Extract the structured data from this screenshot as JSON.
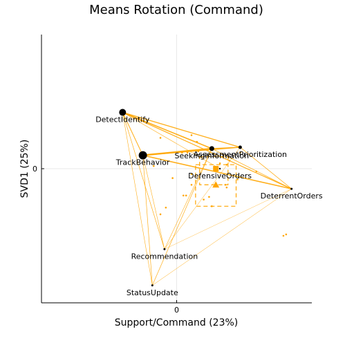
{
  "chart_data": {
    "type": "scatter",
    "title": "Means Rotation (Command)",
    "xlabel": "Support/Command (23%)",
    "ylabel": "SVD1 (25%)",
    "xlim": [
      -1.0,
      1.0
    ],
    "ylim": [
      -1.0,
      1.0
    ],
    "xticks": [
      0
    ],
    "yticks": [
      0
    ],
    "grid": true,
    "legend": "none",
    "colors": {
      "accent": "#FFA500",
      "points": "#000000",
      "grid": "#e8e8e8"
    },
    "points": [
      {
        "label": "DetectIdentify",
        "x": -0.4,
        "y": 0.42,
        "weight": 5
      },
      {
        "label": "TrackBehavior",
        "x": -0.25,
        "y": 0.1,
        "weight": 6
      },
      {
        "label": "SeekingInformation",
        "x": 0.26,
        "y": 0.15,
        "weight": 3.5
      },
      {
        "label": "AssessmentPrioritization",
        "x": 0.47,
        "y": 0.16,
        "weight": 2.5
      },
      {
        "label": "DeterrentOrders",
        "x": 0.85,
        "y": -0.15,
        "weight": 1.5
      },
      {
        "label": "Recommendation",
        "x": -0.09,
        "y": -0.6,
        "weight": 1.5
      },
      {
        "label": "StatusUpdate",
        "x": -0.18,
        "y": -0.87,
        "weight": 1.5
      },
      {
        "label": "DefensiveOrders",
        "x": 0.32,
        "y": 0.0,
        "weight": 1.2
      }
    ],
    "connections": [
      [
        "DetectIdentify",
        "SeekingInformation",
        1.6
      ],
      [
        "DetectIdentify",
        "AssessmentPrioritization",
        1.3
      ],
      [
        "DetectIdentify",
        "DeterrentOrders",
        1.2
      ],
      [
        "DetectIdentify",
        "TrackBehavior",
        1.0
      ],
      [
        "DetectIdentify",
        "Recommendation",
        0.7
      ],
      [
        "DetectIdentify",
        "StatusUpdate",
        0.6
      ],
      [
        "DetectIdentify",
        "DefensiveOrders",
        0.6
      ],
      [
        "TrackBehavior",
        "SeekingInformation",
        2.4
      ],
      [
        "TrackBehavior",
        "AssessmentPrioritization",
        1.4
      ],
      [
        "TrackBehavior",
        "DeterrentOrders",
        1.6
      ],
      [
        "TrackBehavior",
        "StatusUpdate",
        0.7
      ],
      [
        "TrackBehavior",
        "Recommendation",
        0.6
      ],
      [
        "SeekingInformation",
        "AssessmentPrioritization",
        1.2
      ],
      [
        "SeekingInformation",
        "DeterrentOrders",
        0.8
      ],
      [
        "SeekingInformation",
        "StatusUpdate",
        0.7
      ],
      [
        "SeekingInformation",
        "Recommendation",
        0.6
      ],
      [
        "AssessmentPrioritization",
        "DeterrentOrders",
        0.8
      ],
      [
        "AssessmentPrioritization",
        "Recommendation",
        0.5
      ],
      [
        "DeterrentOrders",
        "StatusUpdate",
        0.5
      ],
      [
        "DeterrentOrders",
        "Recommendation",
        0.4
      ]
    ],
    "means": [
      {
        "marker": "square",
        "x": 0.29,
        "y": 0.0
      },
      {
        "marker": "triangle",
        "x": 0.29,
        "y": -0.12
      }
    ],
    "mean_boxes": [
      {
        "x0": 0.14,
        "x1": 0.44,
        "y0": -0.28,
        "y1": 0.03
      },
      {
        "x0": 0.17,
        "x1": 0.38,
        "y0": -0.12,
        "y1": 0.09
      }
    ],
    "orange_dots": [
      [
        -0.12,
        0.23
      ],
      [
        0.08,
        0.12
      ],
      [
        -0.03,
        -0.07
      ],
      [
        0.26,
        -0.28
      ],
      [
        -0.12,
        -0.34
      ],
      [
        0.47,
        0.12
      ],
      [
        0.59,
        -0.02
      ],
      [
        0.81,
        -0.49
      ],
      [
        0.36,
        -0.12
      ],
      [
        0.24,
        -0.21
      ],
      [
        0.07,
        -0.2
      ],
      [
        -0.17,
        0.02
      ],
      [
        0.11,
        -0.04
      ],
      [
        0.37,
        0.03
      ],
      [
        0.15,
        0.2
      ],
      [
        0.11,
        0.25
      ],
      [
        0.04,
        0.12
      ],
      [
        0.16,
        0.13
      ],
      [
        0.11,
        -0.12
      ],
      [
        0.32,
        0.04
      ],
      [
        0.79,
        -0.5
      ],
      [
        0.05,
        -0.2
      ],
      [
        0.45,
        -0.08
      ],
      [
        0.2,
        -0.23
      ],
      [
        0.39,
        0.06
      ],
      [
        0.37,
        -0.14
      ],
      [
        -0.08,
        -0.29
      ]
    ]
  }
}
